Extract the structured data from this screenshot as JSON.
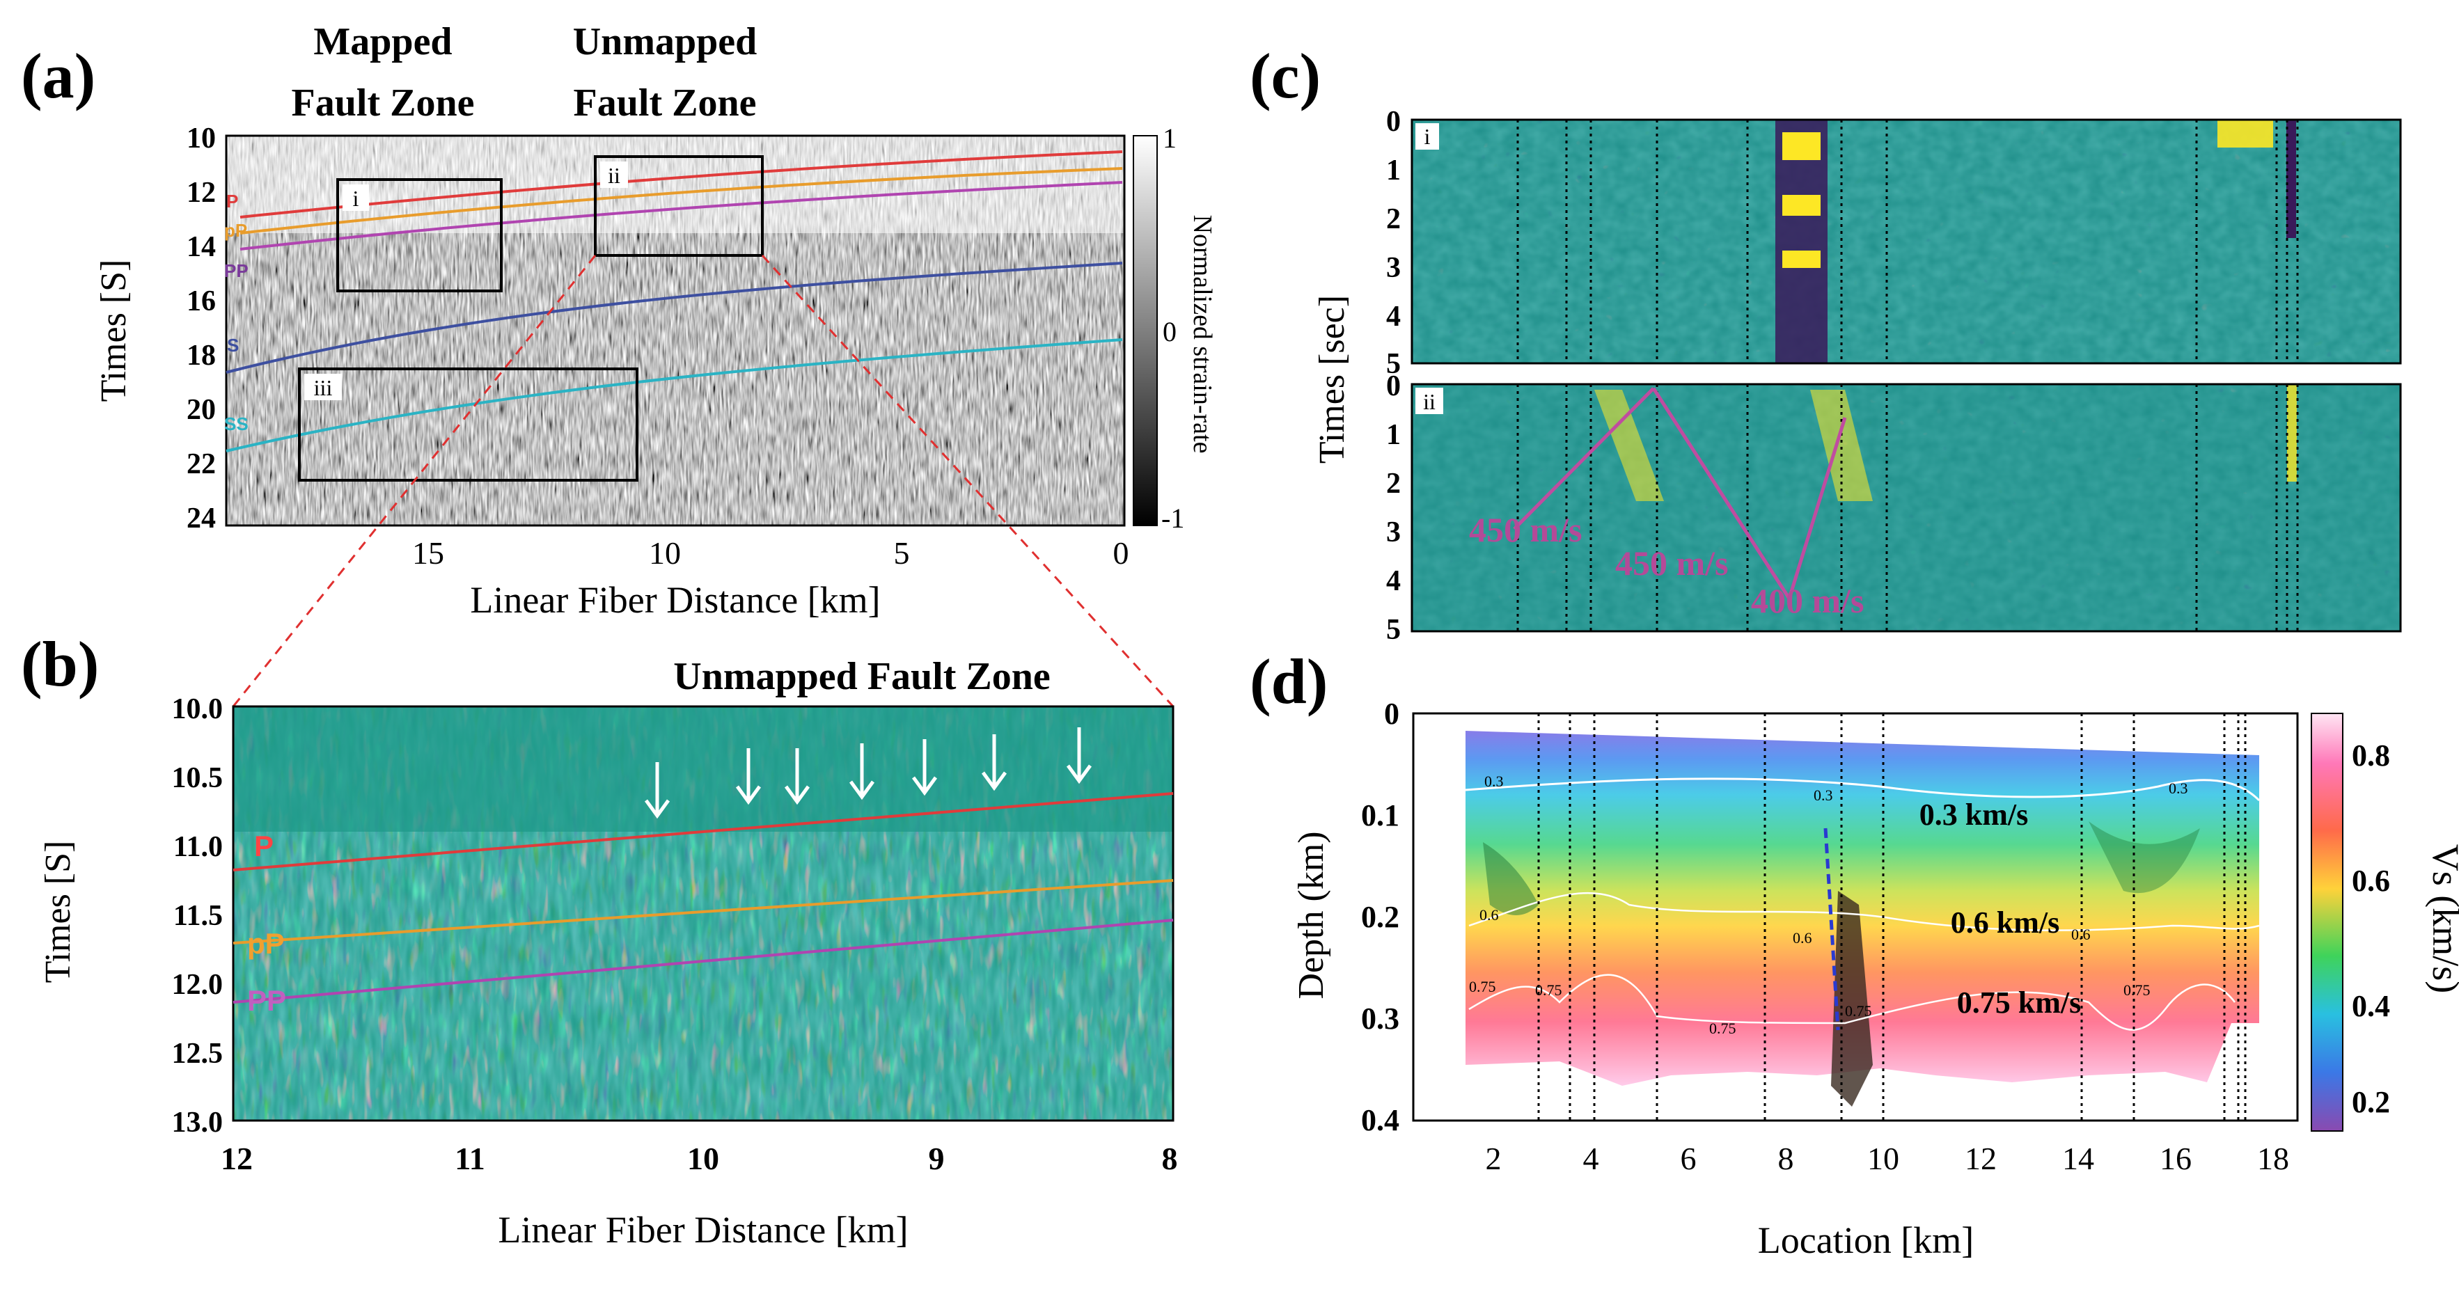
{
  "figure": {
    "panel_a": {
      "label": "(a)",
      "header_mapped_1": "Mapped",
      "header_mapped_2": "Fault Zone",
      "header_unmapped_1": "Unmapped",
      "header_unmapped_2": "Fault Zone",
      "ylabel": "Times [S]",
      "xlabel": "Linear Fiber Distance [km]",
      "yticks": [
        "10",
        "12",
        "14",
        "16",
        "18",
        "20",
        "22",
        "24"
      ],
      "xticks": [
        "15",
        "10",
        "5",
        "0"
      ],
      "colorbar_label": "Normalized strain-rate",
      "colorbar_ticks": [
        "1",
        "0",
        "-1"
      ],
      "phase_labels": [
        "P",
        "pP",
        "PP",
        "S",
        "SS"
      ],
      "box_labels": [
        "i",
        "ii",
        "iii"
      ],
      "colors": {
        "P": "#e03b3b",
        "pP": "#e89c2c",
        "PP": "#b044b0",
        "S": "#3d4fa0",
        "SS": "#2ab3c4"
      }
    },
    "panel_b": {
      "label": "(b)",
      "title": "Unmapped Fault Zone",
      "ylabel": "Times [S]",
      "xlabel": "Linear Fiber Distance [km]",
      "yticks": [
        "10.0",
        "10.5",
        "11.0",
        "11.5",
        "12.0",
        "12.5",
        "13.0"
      ],
      "xticks": [
        "12",
        "11",
        "10",
        "9",
        "8"
      ],
      "phase_labels": [
        "P",
        "pP",
        "PP"
      ]
    },
    "panel_c": {
      "label": "(c)",
      "ylabel": "Times [sec]",
      "sub_i": "i",
      "sub_ii": "ii",
      "yticks": [
        "0",
        "1",
        "2",
        "3",
        "4",
        "5"
      ],
      "velocity_annotations": [
        "450 m/s",
        "450 m/s",
        "400 m/s"
      ]
    },
    "panel_d": {
      "label": "(d)",
      "ylabel": "Depth (km)",
      "xlabel": "Location [km]",
      "yticks": [
        "0",
        "0.1",
        "0.2",
        "0.3",
        "0.4"
      ],
      "xticks": [
        "2",
        "4",
        "6",
        "8",
        "10",
        "12",
        "14",
        "16",
        "18"
      ],
      "colorbar_label": "Vs (km/s)",
      "colorbar_ticks": [
        "0.8",
        "0.6",
        "0.4",
        "0.2"
      ],
      "contour_annotations": [
        "0.3 km/s",
        "0.6 km/s",
        "0.75 km/s"
      ],
      "contour_small_labels": [
        "0.3",
        "0.3",
        "0.3",
        "0.6",
        "0.6",
        "0.6",
        "0.75",
        "0.75",
        "0.75",
        "0.75",
        "0.75"
      ]
    }
  }
}
